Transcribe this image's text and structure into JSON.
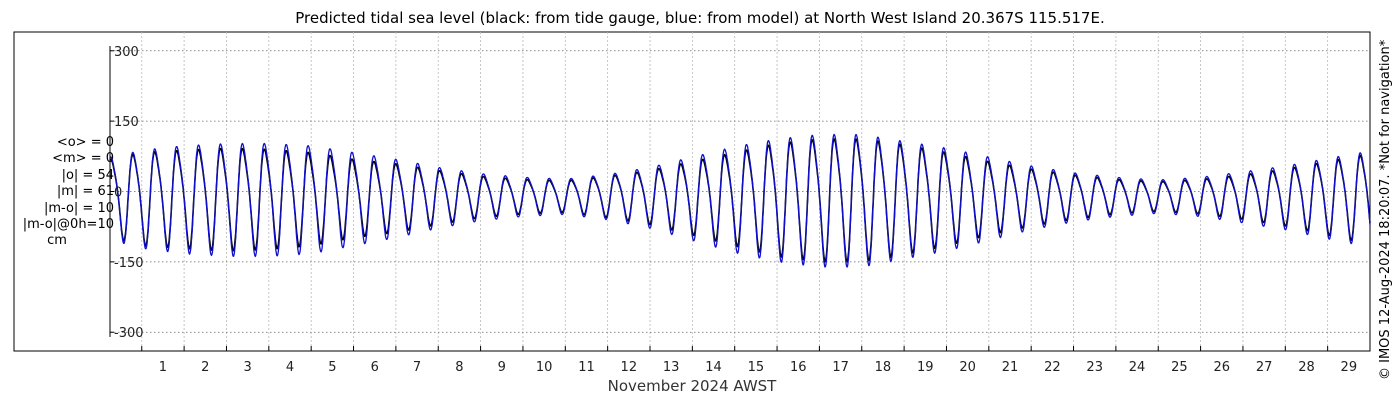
{
  "chart_data": {
    "type": "line",
    "title": "Predicted tidal sea level (black: from tide gauge, blue: from model) at North West Island 20.367S 115.517E.",
    "xlabel": "November 2024 AWST",
    "ylabel": "",
    "xlim": [
      0.25,
      30
    ],
    "ylim": [
      -340,
      340
    ],
    "x_ticks": [
      1,
      2,
      3,
      4,
      5,
      6,
      7,
      8,
      9,
      10,
      11,
      12,
      13,
      14,
      15,
      16,
      17,
      18,
      19,
      20,
      21,
      22,
      23,
      24,
      25,
      26,
      27,
      28,
      29
    ],
    "y_ticks": [
      300,
      150,
      0,
      -150,
      -300
    ],
    "y_tick_labels": [
      "300",
      "150",
      "0",
      "-150",
      "-300"
    ],
    "grid": true,
    "stats": [
      "<o> = 0",
      "<m> = 0",
      "|o| = 54",
      "|m| = 61",
      "|m-o| = 10",
      "|m-o|@0h=10",
      "cm"
    ],
    "series": [
      {
        "color": "#000000",
        "amplitude_envelope": [
          [
            0.3,
            80
          ],
          [
            1,
            95
          ],
          [
            2,
            100
          ],
          [
            3,
            105
          ],
          [
            4,
            102
          ],
          [
            5,
            95
          ],
          [
            6,
            80
          ],
          [
            7,
            70
          ],
          [
            8,
            55
          ],
          [
            9,
            42
          ],
          [
            10,
            35
          ],
          [
            11,
            32
          ],
          [
            12,
            42
          ],
          [
            13,
            55
          ],
          [
            14,
            75
          ],
          [
            15,
            95
          ],
          [
            16,
            115
          ],
          [
            17,
            125
          ],
          [
            18,
            125
          ],
          [
            19,
            112
          ],
          [
            20,
            95
          ],
          [
            21,
            75
          ],
          [
            22,
            58
          ],
          [
            23,
            45
          ],
          [
            24,
            35
          ],
          [
            25,
            30
          ],
          [
            26,
            35
          ],
          [
            27,
            45
          ],
          [
            28,
            58
          ],
          [
            29,
            75
          ],
          [
            30,
            92
          ]
        ]
      },
      {
        "color": "#1010cc",
        "amplitude_envelope": [
          [
            0.3,
            85
          ],
          [
            1,
            100
          ],
          [
            2,
            110
          ],
          [
            3,
            115
          ],
          [
            4,
            115
          ],
          [
            5,
            110
          ],
          [
            6,
            95
          ],
          [
            7,
            80
          ],
          [
            8,
            62
          ],
          [
            9,
            48
          ],
          [
            10,
            40
          ],
          [
            11,
            36
          ],
          [
            12,
            46
          ],
          [
            13,
            62
          ],
          [
            14,
            85
          ],
          [
            15,
            108
          ],
          [
            16,
            125
          ],
          [
            17,
            135
          ],
          [
            18,
            135
          ],
          [
            19,
            120
          ],
          [
            20,
            105
          ],
          [
            21,
            85
          ],
          [
            22,
            65
          ],
          [
            23,
            50
          ],
          [
            24,
            40
          ],
          [
            25,
            34
          ],
          [
            26,
            40
          ],
          [
            27,
            52
          ],
          [
            28,
            65
          ],
          [
            29,
            82
          ],
          [
            30,
            98
          ]
        ]
      }
    ]
  },
  "credit": "© IMOS 12-Aug-2024 18:20:07. *Not for navigation*"
}
